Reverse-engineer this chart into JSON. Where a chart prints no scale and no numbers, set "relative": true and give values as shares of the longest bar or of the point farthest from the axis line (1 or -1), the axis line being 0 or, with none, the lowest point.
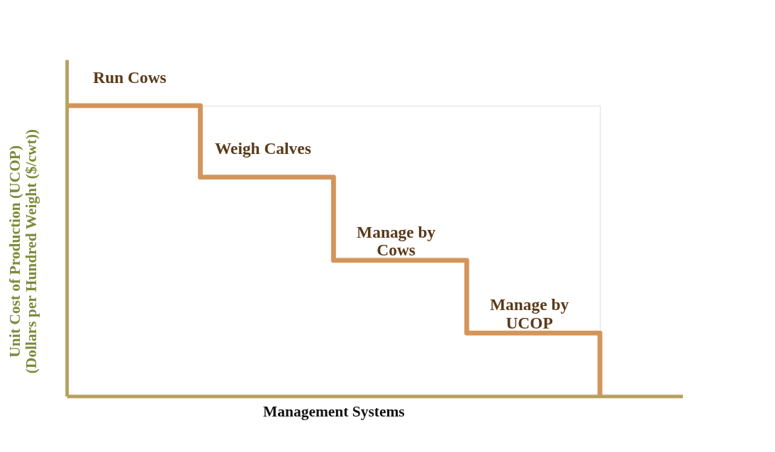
{
  "chart_data": {
    "type": "step",
    "relative": true,
    "xlabel": "Management Systems",
    "ylabel": [
      "Unit Cost of Production (UCOP)",
      "(Dollars per Hundred Weight ($/cwt))"
    ],
    "categories": [
      null,
      null,
      null,
      null,
      null
    ],
    "series": [
      {
        "color": "#d4955a",
        "values": [
          1,
          0.754,
          0.468,
          0.218,
          0
        ]
      }
    ],
    "annotations": [
      "Run Cows",
      "Weigh Calves",
      "Manage by\nCows",
      "Manage by\nUCOP"
    ],
    "grid": false,
    "line_style": "solid"
  }
}
